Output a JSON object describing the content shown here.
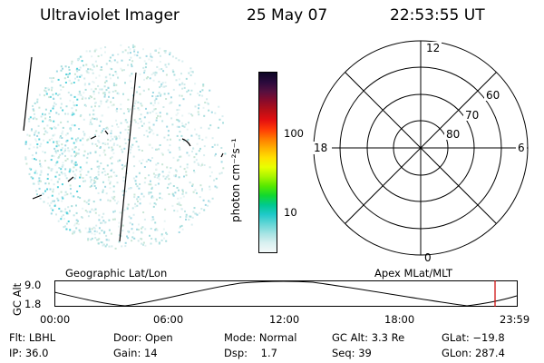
{
  "header": {
    "instrument": "Ultraviolet Imager",
    "date": "25 May 07",
    "time": "22:53:55 UT"
  },
  "colorbar": {
    "unit_label": "photon cm⁻²s⁻¹",
    "tick_labels": [
      "100",
      "10"
    ],
    "colors": [
      "#0d0524",
      "#2a0a3c",
      "#55103f",
      "#8a0b2a",
      "#b70f17",
      "#e30f10",
      "#ff3a06",
      "#ff7a00",
      "#ffb000",
      "#ffe000",
      "#e8ff00",
      "#a8f500",
      "#55e800",
      "#12d82f",
      "#00c98f",
      "#1fc9c9",
      "#63d6d6",
      "#a4e3e3",
      "#d8f0f0",
      "#f4f9f9"
    ]
  },
  "polar_plot": {
    "mlt_labels": {
      "top": "12",
      "left": "18",
      "right": "6",
      "bottom": "0"
    },
    "lat_labels": [
      "60",
      "70",
      "80"
    ]
  },
  "strip": {
    "left_title": "Geographic Lat/Lon",
    "right_title": "Apex MLat/MLT",
    "y_axis_label": "GC Alt",
    "y_ticks": [
      "9.0",
      "1.8"
    ],
    "time_ticks": [
      "00:00",
      "06:00",
      "12:00",
      "18:00",
      "23:59"
    ],
    "marker_color": "#cc0000",
    "marker_time": "22:53:55"
  },
  "metadata": {
    "row1": [
      {
        "label": "Flt:",
        "value": "LBHL"
      },
      {
        "label": "Door:",
        "value": "Open"
      },
      {
        "label": "Mode:",
        "value": "Normal"
      },
      {
        "label": "GC Alt:",
        "value": "3.3 Re"
      },
      {
        "label": "GLat:",
        "value": "−19.8"
      }
    ],
    "row2": [
      {
        "label": "IP:",
        "value": "36.0"
      },
      {
        "label": "Gain:",
        "value": "14"
      },
      {
        "label": "Dsp:",
        "value": "1.7"
      },
      {
        "label": "Seq:",
        "value": "39"
      },
      {
        "label": "GLon:",
        "value": "287.4"
      }
    ]
  }
}
